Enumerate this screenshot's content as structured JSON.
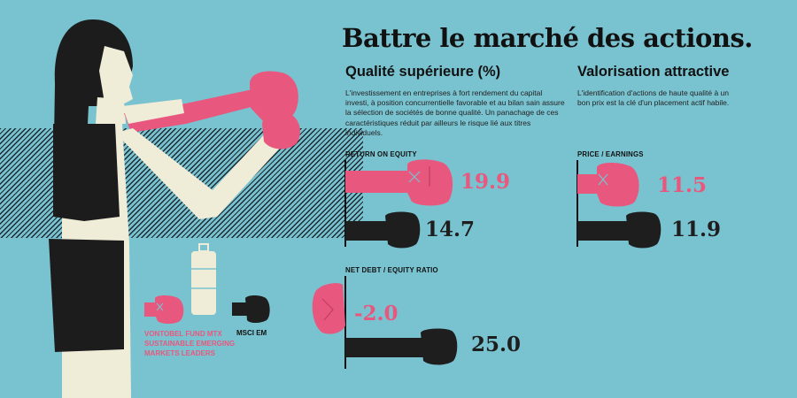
{
  "headline": "Battre le marché des actions.",
  "quality": {
    "heading": "Qualité supérieure (%)",
    "description": "L'investissement en entreprises à fort rendement du capital investi, à position concurrentielle favorable et au bilan sain assure la sélection de sociétés de bonne qualité. Un panachage de ces caractéristiques réduit par ailleurs le risque lié aux titres individuels."
  },
  "valuation": {
    "heading": "Valorisation attractive",
    "description": "L'identification d'actions de haute qualité à un bon prix est la clé d'un placement actif habile."
  },
  "metrics": {
    "roe": {
      "label": "RETURN ON EQUITY",
      "fund": "19.9",
      "index": "14.7"
    },
    "pe": {
      "label": "PRICE / EARNINGS",
      "fund": "11.5",
      "index": "11.9"
    },
    "debt": {
      "label": "NET DEBT / EQUITY RATIO",
      "fund": "-2.0",
      "index": "25.0"
    }
  },
  "legend": {
    "fund": "VONTOBEL FUND MTX SUSTAINABLE EMERGING MARKETS LEADERS",
    "index": "MSCI EM"
  },
  "colors": {
    "background": "#79c3d0",
    "pink": "#e8587e",
    "dark": "#1e1e1e",
    "skin": "#efecd8",
    "hair": "#1c1c1c"
  },
  "icons": [
    "pink-boxing-glove-icon",
    "dark-fist-icon",
    "punching-bag-icon"
  ]
}
